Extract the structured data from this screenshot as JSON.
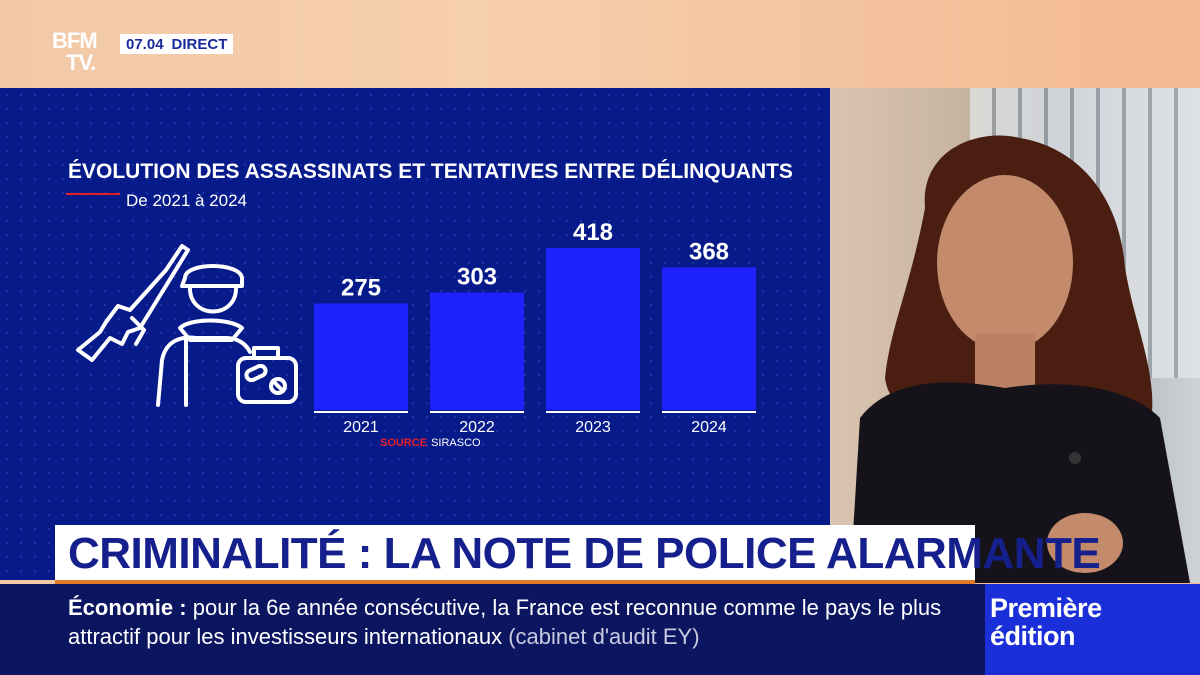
{
  "channel": {
    "logo_line1": "BFM",
    "logo_line2": "TV.",
    "time": "07.04",
    "live_label": "DIRECT"
  },
  "chart_data": {
    "type": "bar",
    "title": "ÉVOLUTION DES ASSASSINATS ET TENTATIVES ENTRE DÉLINQUANTS",
    "subtitle": "De 2021 à 2024",
    "categories": [
      "2021",
      "2022",
      "2023",
      "2024"
    ],
    "values": [
      275,
      303,
      418,
      368
    ],
    "ylim": [
      0,
      418
    ],
    "source_label": "SOURCE",
    "source_value": "SIRASCO",
    "bar_color": "#1e22ff",
    "grid": false
  },
  "illustration": {
    "icon_name": "gunman-with-drugs-icon"
  },
  "headline": {
    "text": "CRIMINALITÉ : LA NOTE DE POLICE ALARMANTE"
  },
  "ticker": {
    "category": "Économie",
    "separator": ":",
    "line1": "pour la 6e année consécutive, la France est reconnue comme le",
    "line2": "pays le plus attractif pour les investisseurs internationaux",
    "source": "(cabinet d'audit EY)"
  },
  "show": {
    "line1": "Première",
    "line2": "édition"
  },
  "colors": {
    "panel": "#061a8a",
    "accent_red": "#e4212b",
    "headline_text": "#15208c",
    "ticker_bg": "#0c1560",
    "show_bg": "#1a2fd8"
  }
}
